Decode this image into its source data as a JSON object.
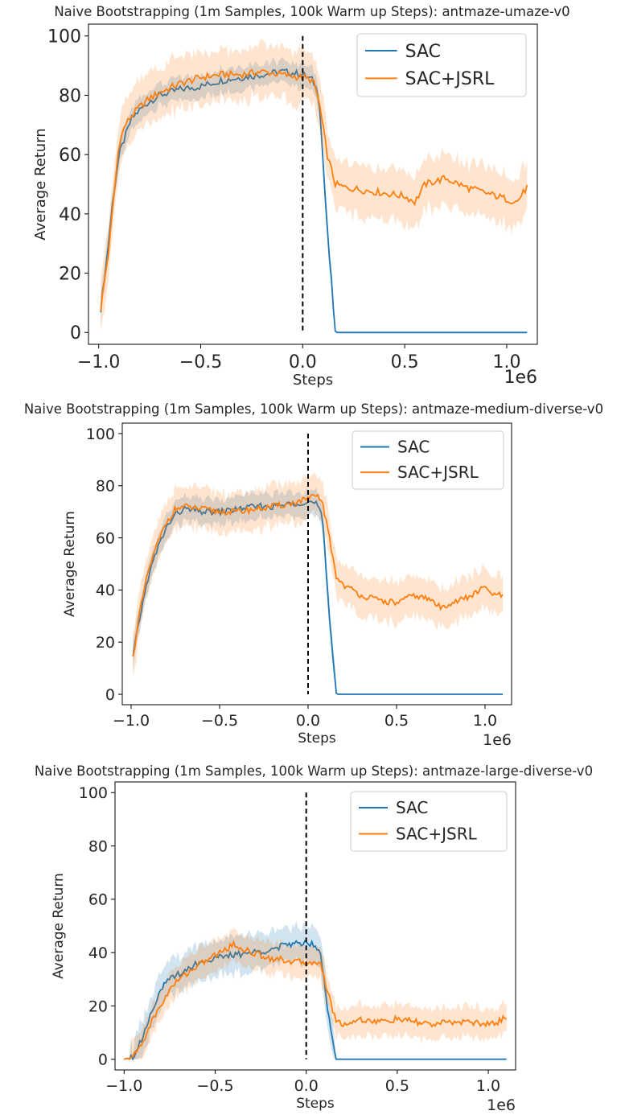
{
  "chart_data": [
    {
      "type": "line",
      "title": "Naive Bootstrapping (1m Samples, 100k Warm up Steps): antmaze-umaze-v0",
      "xlabel": "Steps",
      "ylabel": "Average Return",
      "x_offset_label": "1e6",
      "xlim": [
        -1.05,
        1.15
      ],
      "ylim": [
        -4,
        104
      ],
      "xticks": [
        -1.0,
        -0.5,
        0.0,
        0.5,
        1.0
      ],
      "xtick_labels": [
        "−1.0",
        "−0.5",
        "0.0",
        "0.5",
        "1.0"
      ],
      "yticks": [
        0,
        20,
        40,
        60,
        80,
        100
      ],
      "ytick_labels": [
        "0",
        "20",
        "40",
        "60",
        "80",
        "100"
      ],
      "vline_x": 0.0,
      "legend_position": "top-right",
      "series": [
        {
          "name": "SAC",
          "color": "#1f77b4",
          "x": [
            -0.99,
            -0.96,
            -0.93,
            -0.9,
            -0.87,
            -0.84,
            -0.8,
            -0.75,
            -0.7,
            -0.6,
            -0.5,
            -0.4,
            -0.3,
            -0.2,
            -0.1,
            0.0,
            0.05,
            0.08,
            0.12,
            0.16,
            0.25,
            0.5,
            0.75,
            1.0,
            1.1
          ],
          "y": [
            8,
            25,
            45,
            60,
            66,
            72,
            75,
            78,
            80,
            82,
            83,
            85,
            86,
            87,
            88,
            87,
            85,
            80,
            35,
            0,
            0,
            0,
            0,
            0,
            0
          ],
          "band": 4
        },
        {
          "name": "SAC+JSRL",
          "color": "#ff7f0e",
          "x": [
            -0.99,
            -0.95,
            -0.92,
            -0.9,
            -0.87,
            -0.84,
            -0.8,
            -0.75,
            -0.7,
            -0.6,
            -0.5,
            -0.4,
            -0.3,
            -0.2,
            -0.1,
            0.0,
            0.05,
            0.08,
            0.12,
            0.16,
            0.2,
            0.3,
            0.4,
            0.5,
            0.55,
            0.6,
            0.7,
            0.8,
            0.9,
            1.0,
            1.05,
            1.1
          ],
          "y": [
            8,
            28,
            50,
            64,
            70,
            73,
            76,
            79,
            81,
            84,
            86,
            87,
            87,
            88,
            87,
            86,
            85,
            78,
            60,
            50,
            49,
            48,
            47,
            46,
            44,
            50,
            52,
            49,
            47,
            45,
            44,
            49
          ],
          "band": 9
        }
      ]
    },
    {
      "type": "line",
      "title": "Naive Bootstrapping (1m Samples, 100k Warm up Steps): antmaze-medium-diverse-v0",
      "xlabel": "Steps",
      "ylabel": "Average Return",
      "x_offset_label": "1e6",
      "xlim": [
        -1.05,
        1.15
      ],
      "ylim": [
        -4,
        104
      ],
      "xticks": [
        -1.0,
        -0.5,
        0.0,
        0.5,
        1.0
      ],
      "xtick_labels": [
        "−1.0",
        "−0.5",
        "0.0",
        "0.5",
        "1.0"
      ],
      "yticks": [
        0,
        20,
        40,
        60,
        80,
        100
      ],
      "ytick_labels": [
        "0",
        "20",
        "40",
        "60",
        "80",
        "100"
      ],
      "vline_x": 0.0,
      "legend_position": "top-right",
      "series": [
        {
          "name": "SAC",
          "color": "#1f77b4",
          "x": [
            -0.99,
            -0.95,
            -0.9,
            -0.85,
            -0.8,
            -0.75,
            -0.7,
            -0.6,
            -0.5,
            -0.4,
            -0.3,
            -0.2,
            -0.1,
            0.0,
            0.05,
            0.08,
            0.12,
            0.16,
            0.3,
            0.5,
            0.75,
            1.0,
            1.1
          ],
          "y": [
            14,
            30,
            46,
            56,
            64,
            69,
            71,
            70,
            70,
            71,
            72,
            72,
            73,
            74,
            73,
            68,
            30,
            0,
            0,
            0,
            0,
            0,
            0
          ],
          "band": 5
        },
        {
          "name": "SAC+JSRL",
          "color": "#ff7f0e",
          "x": [
            -0.99,
            -0.95,
            -0.9,
            -0.85,
            -0.8,
            -0.75,
            -0.7,
            -0.6,
            -0.5,
            -0.4,
            -0.3,
            -0.2,
            -0.1,
            0.0,
            0.05,
            0.08,
            0.12,
            0.16,
            0.2,
            0.3,
            0.4,
            0.5,
            0.6,
            0.7,
            0.75,
            0.8,
            0.9,
            1.0,
            1.05,
            1.1
          ],
          "y": [
            14,
            32,
            48,
            58,
            66,
            71,
            72,
            71,
            70,
            70,
            71,
            72,
            73,
            75,
            76,
            74,
            60,
            45,
            42,
            38,
            36,
            35,
            38,
            36,
            33,
            35,
            37,
            41,
            38,
            38
          ],
          "band": 8
        }
      ]
    },
    {
      "type": "line",
      "title": "Naive Bootstrapping (1m Samples, 100k Warm up Steps): antmaze-large-diverse-v0",
      "xlabel": "Steps",
      "ylabel": "Average Return",
      "x_offset_label": "1e6",
      "xlim": [
        -1.05,
        1.15
      ],
      "ylim": [
        -4,
        104
      ],
      "xticks": [
        -1.0,
        -0.5,
        0.0,
        0.5,
        1.0
      ],
      "xtick_labels": [
        "−1.0",
        "−0.5",
        "0.0",
        "0.5",
        "1.0"
      ],
      "yticks": [
        0,
        20,
        40,
        60,
        80,
        100
      ],
      "ytick_labels": [
        "0",
        "20",
        "40",
        "60",
        "80",
        "100"
      ],
      "vline_x": 0.0,
      "legend_position": "top-right",
      "series": [
        {
          "name": "SAC",
          "color": "#1f77b4",
          "x": [
            -1.0,
            -0.95,
            -0.9,
            -0.85,
            -0.8,
            -0.75,
            -0.7,
            -0.6,
            -0.5,
            -0.4,
            -0.3,
            -0.2,
            -0.1,
            0.0,
            0.05,
            0.08,
            0.12,
            0.16,
            0.3,
            0.5,
            0.75,
            1.0,
            1.1
          ],
          "y": [
            0,
            1,
            8,
            18,
            26,
            30,
            32,
            36,
            38,
            39,
            40,
            41,
            43,
            44,
            43,
            40,
            18,
            0,
            0,
            0,
            0,
            0,
            0
          ],
          "band": 7
        },
        {
          "name": "SAC+JSRL",
          "color": "#ff7f0e",
          "x": [
            -1.0,
            -0.95,
            -0.9,
            -0.85,
            -0.8,
            -0.75,
            -0.7,
            -0.6,
            -0.5,
            -0.4,
            -0.3,
            -0.2,
            -0.1,
            0.0,
            0.05,
            0.08,
            0.12,
            0.16,
            0.2,
            0.3,
            0.4,
            0.5,
            0.6,
            0.7,
            0.8,
            0.9,
            1.0,
            1.05,
            1.1
          ],
          "y": [
            0,
            1,
            6,
            14,
            20,
            26,
            30,
            35,
            39,
            43,
            40,
            38,
            37,
            36,
            37,
            35,
            25,
            15,
            13,
            15,
            14,
            15,
            14,
            13,
            14,
            14,
            13,
            14,
            16
          ],
          "band": 6
        }
      ]
    }
  ]
}
